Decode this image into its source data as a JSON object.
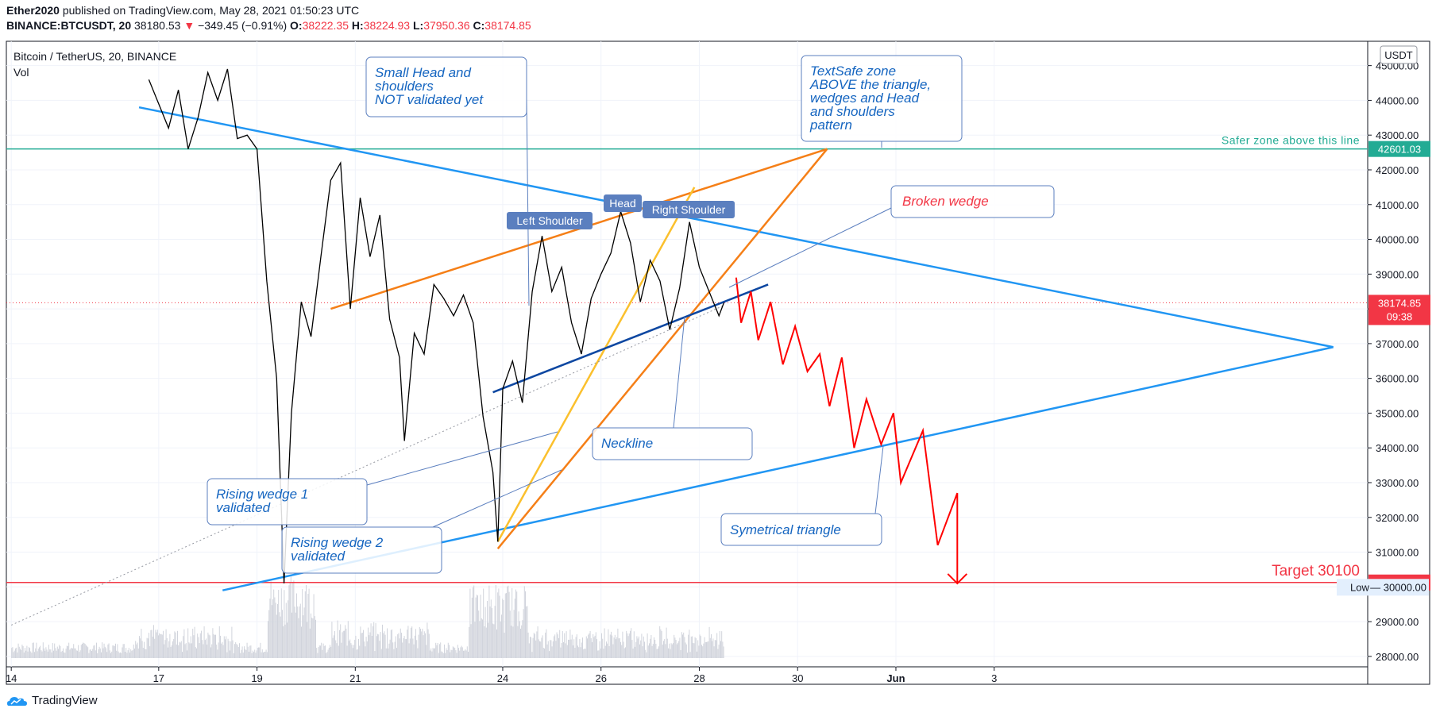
{
  "header": {
    "author": "Ether2020",
    "published": "published on TradingView.com, May 28, 2021 01:50:23 UTC",
    "symbol": "BINANCE:BTCUSDT, 20",
    "last": "38180.53",
    "change_arrow": "▼",
    "change": "−349.45 (−0.91%)",
    "o_label": "O:",
    "o": "38222.35",
    "h_label": "H:",
    "h": "38224.93",
    "l_label": "L:",
    "l": "37950.36",
    "c_label": "C:",
    "c": "38174.85"
  },
  "legend": {
    "title": "Bitcoin / TetherUS, 20, BINANCE",
    "vol": "Vol"
  },
  "footer": {
    "brand": "TradingView"
  },
  "chart_data": {
    "type": "line",
    "title": "Bitcoin / TetherUS, 20, BINANCE",
    "currency": "USDT",
    "ylim": [
      27700,
      45700
    ],
    "y_ticks": [
      28000,
      29000,
      30000,
      31000,
      32000,
      33000,
      34000,
      35000,
      36000,
      37000,
      38000,
      39000,
      40000,
      41000,
      42000,
      43000,
      44000,
      45000
    ],
    "y_tick_labels": [
      "28000.00",
      "29000.00",
      "30000.00",
      "31000.00",
      "32000.00",
      "33000.00",
      "34000.00",
      "35000.00",
      "36000.00",
      "37000.00",
      "38000.00",
      "39000.00",
      "40000.00",
      "41000.00",
      "42000.00",
      "43000.00",
      "44000.00",
      "45000.00"
    ],
    "xlim": [
      13.9,
      41.6
    ],
    "x_ticks": [
      {
        "day": 14,
        "label": "14"
      },
      {
        "day": 17,
        "label": "17"
      },
      {
        "day": 19,
        "label": "19"
      },
      {
        "day": 21,
        "label": "21"
      },
      {
        "day": 24,
        "label": "24"
      },
      {
        "day": 26,
        "label": "26"
      },
      {
        "day": 28,
        "label": "28"
      },
      {
        "day": 30,
        "label": "30"
      },
      {
        "day": 32,
        "label": "Jun"
      },
      {
        "day": 34,
        "label": "3"
      }
    ],
    "grid": true,
    "price_series": {
      "name": "BTCUSDT",
      "points": [
        [
          16.8,
          44600
        ],
        [
          17.0,
          43900
        ],
        [
          17.2,
          43200
        ],
        [
          17.4,
          44300
        ],
        [
          17.6,
          42600
        ],
        [
          17.8,
          43500
        ],
        [
          18.0,
          44800
        ],
        [
          18.2,
          44000
        ],
        [
          18.4,
          44900
        ],
        [
          18.6,
          42900
        ],
        [
          18.8,
          43000
        ],
        [
          19.0,
          42600
        ],
        [
          19.2,
          38800
        ],
        [
          19.4,
          36000
        ],
        [
          19.55,
          30100
        ],
        [
          19.7,
          35000
        ],
        [
          19.9,
          38200
        ],
        [
          20.1,
          37200
        ],
        [
          20.3,
          39500
        ],
        [
          20.5,
          41700
        ],
        [
          20.7,
          42200
        ],
        [
          20.9,
          38000
        ],
        [
          21.1,
          41200
        ],
        [
          21.3,
          39500
        ],
        [
          21.5,
          40700
        ],
        [
          21.7,
          37700
        ],
        [
          21.9,
          36600
        ],
        [
          22.0,
          34200
        ],
        [
          22.2,
          37300
        ],
        [
          22.4,
          36700
        ],
        [
          22.6,
          38700
        ],
        [
          22.8,
          38300
        ],
        [
          23.0,
          37800
        ],
        [
          23.2,
          38400
        ],
        [
          23.4,
          37600
        ],
        [
          23.6,
          34900
        ],
        [
          23.8,
          33300
        ],
        [
          23.9,
          31300
        ],
        [
          24.0,
          35700
        ],
        [
          24.2,
          36500
        ],
        [
          24.4,
          35300
        ],
        [
          24.6,
          38500
        ],
        [
          24.8,
          40100
        ],
        [
          25.0,
          38500
        ],
        [
          25.2,
          39200
        ],
        [
          25.4,
          37600
        ],
        [
          25.6,
          36700
        ],
        [
          25.8,
          38300
        ],
        [
          26.0,
          39000
        ],
        [
          26.2,
          39600
        ],
        [
          26.4,
          40800
        ],
        [
          26.6,
          39900
        ],
        [
          26.8,
          38200
        ],
        [
          27.0,
          39400
        ],
        [
          27.2,
          38800
        ],
        [
          27.4,
          37400
        ],
        [
          27.6,
          38600
        ],
        [
          27.8,
          40500
        ],
        [
          28.0,
          39200
        ],
        [
          28.2,
          38500
        ],
        [
          28.4,
          37800
        ],
        [
          28.5,
          38175
        ]
      ]
    },
    "projection": {
      "name": "projection",
      "color": "#ff0000",
      "points": [
        [
          28.75,
          38900
        ],
        [
          28.85,
          37600
        ],
        [
          29.05,
          38500
        ],
        [
          29.2,
          37100
        ],
        [
          29.45,
          38200
        ],
        [
          29.7,
          36400
        ],
        [
          29.95,
          37500
        ],
        [
          30.2,
          36200
        ],
        [
          30.45,
          36700
        ],
        [
          30.65,
          35200
        ],
        [
          30.9,
          36600
        ],
        [
          31.15,
          34000
        ],
        [
          31.4,
          35400
        ],
        [
          31.7,
          34100
        ],
        [
          31.95,
          35000
        ],
        [
          32.1,
          33000
        ],
        [
          32.55,
          34500
        ],
        [
          32.85,
          31200
        ],
        [
          33.25,
          32700
        ],
        [
          33.25,
          30100
        ]
      ],
      "arrow_at": [
        33.25,
        30100
      ]
    },
    "levels": [
      {
        "label": "Safer zone above this line",
        "value": 42601.03,
        "value_label": "42601.03",
        "color": "#22ab94"
      },
      {
        "label": "Target 30100",
        "value": 30126.78,
        "value_label": "30126.78",
        "color": "#f23645"
      }
    ],
    "current_price": {
      "value_label": "38174.85",
      "countdown": "09:38",
      "value": 38174.85,
      "color": "#f23645"
    },
    "low_marker": {
      "label": "Low",
      "value_label": "30000.00",
      "value": 30000
    },
    "trendlines": [
      {
        "name": "symmetrical-triangle-upper",
        "color": "#2196f3",
        "from": [
          16.6,
          43800
        ],
        "to": [
          40.9,
          36900
        ]
      },
      {
        "name": "symmetrical-triangle-lower",
        "color": "#2196f3",
        "from": [
          18.3,
          29900
        ],
        "to": [
          40.9,
          36900
        ]
      },
      {
        "name": "rising-wedge-1-upper",
        "color": "#f57f17",
        "from": [
          20.5,
          38000
        ],
        "to": [
          30.6,
          42600
        ]
      },
      {
        "name": "rising-wedge-1-lower",
        "color": "#f57f17",
        "from": [
          23.9,
          31100
        ],
        "to": [
          30.6,
          42600
        ]
      },
      {
        "name": "rising-wedge-2-line",
        "color": "#fbc02d",
        "from": [
          23.9,
          31300
        ],
        "to": [
          27.9,
          41500
        ]
      },
      {
        "name": "neckline",
        "color": "#0d47a1",
        "from": [
          23.8,
          35600
        ],
        "to": [
          29.4,
          38700
        ]
      },
      {
        "name": "dotted-trend",
        "color": "#9598a1",
        "from": [
          14.0,
          28900
        ],
        "to": [
          28.5,
          38100
        ],
        "dashed": true
      }
    ],
    "annotations": [
      {
        "name": "small-head-shoulders-note",
        "lines": [
          "Small Head and",
          "shoulders",
          "NOT validated yet"
        ],
        "color": "#1565c0"
      },
      {
        "name": "textsafe-note",
        "lines": [
          "TextSafe zone",
          "ABOVE the triangle,",
          "wedges and Head",
          "and shoulders",
          "pattern"
        ],
        "color": "#1565c0"
      },
      {
        "name": "broken-wedge-note",
        "lines": [
          "Broken wedge"
        ],
        "color": "#f23645"
      },
      {
        "name": "neckline-note",
        "lines": [
          "Neckline"
        ],
        "color": "#1565c0"
      },
      {
        "name": "rising-wedge-1-note",
        "lines": [
          "Rising wedge 1",
          "validated"
        ],
        "color": "#1565c0"
      },
      {
        "name": "rising-wedge-2-note",
        "lines": [
          "Rising wedge 2",
          "validated"
        ],
        "color": "#1565c0"
      },
      {
        "name": "symmetrical-triangle-note",
        "lines": [
          "Symetrical triangle"
        ],
        "color": "#1565c0"
      }
    ],
    "pattern_labels": [
      {
        "name": "left-shoulder-label",
        "text": "Left Shoulder"
      },
      {
        "name": "head-label",
        "text": "Head"
      },
      {
        "name": "right-shoulder-label",
        "text": "Right Shoulder"
      }
    ]
  }
}
